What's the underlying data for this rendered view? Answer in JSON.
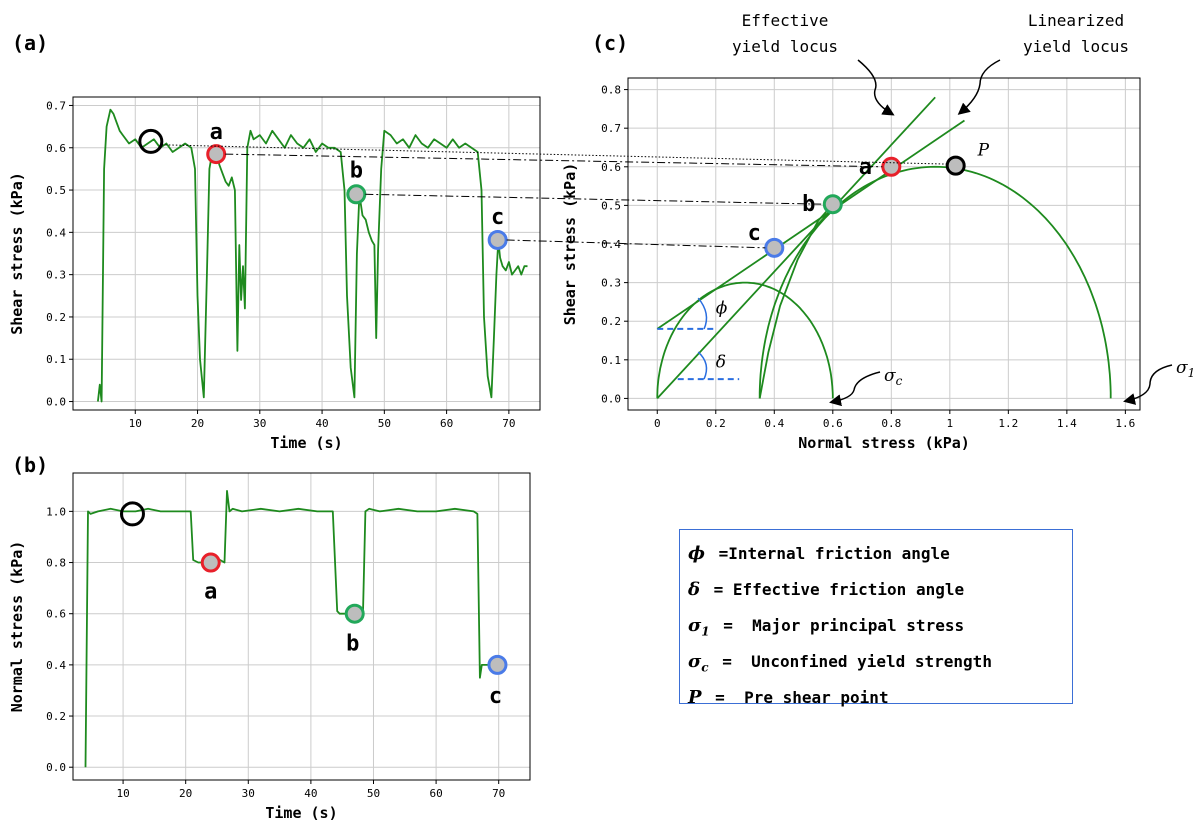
{
  "chart_data": [
    {
      "id": "a",
      "type": "line",
      "panel_label": "(a)",
      "xlabel": "Time (s)",
      "ylabel": "Shear stress (kPa)",
      "xlim": [
        0,
        75
      ],
      "ylim": [
        -0.02,
        0.72
      ],
      "xticks": [
        10,
        20,
        30,
        40,
        50,
        60,
        70
      ],
      "yticks": [
        0.0,
        0.1,
        0.2,
        0.3,
        0.4,
        0.5,
        0.6,
        0.7
      ],
      "grid": true,
      "series": [
        {
          "color": "#1e8a1e",
          "x": [
            4,
            4.3,
            4.6,
            5.0,
            5.4,
            6.0,
            6.5,
            7.0,
            7.5,
            8.0,
            9.0,
            10.0,
            11.0,
            12.0,
            13.0,
            14.0,
            15.0,
            16.0,
            17.0,
            18.0,
            19.0,
            19.6,
            20.0,
            20.4,
            21.0,
            21.5,
            21.9,
            22.5,
            23.0,
            23.5,
            24.0,
            24.5,
            25.0,
            25.5,
            26.0,
            26.4,
            26.7,
            27.0,
            27.3,
            27.6,
            28.0,
            28.5,
            29.0,
            30.0,
            31.0,
            32.0,
            33.0,
            34.0,
            35.0,
            36.0,
            37.0,
            38.0,
            39.0,
            40.0,
            41.0,
            42.0,
            43.0,
            43.6,
            44.0,
            44.6,
            45.2,
            45.6,
            46.0,
            46.5,
            47.0,
            47.5,
            48.0,
            48.4,
            48.7,
            49.0,
            49.5,
            50.0,
            51.0,
            52.0,
            53.0,
            54.0,
            55.0,
            56.0,
            57.0,
            58.0,
            59.0,
            60.0,
            61.0,
            62.0,
            63.0,
            64.0,
            65.0,
            65.6,
            66.0,
            66.6,
            67.2,
            67.6,
            68.0,
            68.3,
            68.6,
            69.0,
            69.5,
            70.0,
            70.5,
            71.0,
            71.5,
            72.0,
            72.5,
            73.0
          ],
          "y": [
            0.0,
            0.04,
            0.0,
            0.55,
            0.65,
            0.69,
            0.68,
            0.66,
            0.64,
            0.63,
            0.61,
            0.62,
            0.6,
            0.61,
            0.62,
            0.6,
            0.61,
            0.59,
            0.6,
            0.61,
            0.6,
            0.55,
            0.25,
            0.1,
            0.01,
            0.3,
            0.55,
            0.6,
            0.59,
            0.56,
            0.54,
            0.52,
            0.51,
            0.53,
            0.5,
            0.12,
            0.37,
            0.24,
            0.32,
            0.22,
            0.6,
            0.64,
            0.62,
            0.63,
            0.61,
            0.64,
            0.62,
            0.6,
            0.63,
            0.61,
            0.6,
            0.62,
            0.59,
            0.61,
            0.6,
            0.6,
            0.59,
            0.5,
            0.25,
            0.08,
            0.01,
            0.35,
            0.49,
            0.44,
            0.43,
            0.4,
            0.38,
            0.37,
            0.15,
            0.36,
            0.55,
            0.64,
            0.63,
            0.61,
            0.62,
            0.6,
            0.63,
            0.61,
            0.6,
            0.62,
            0.61,
            0.6,
            0.62,
            0.6,
            0.61,
            0.6,
            0.59,
            0.5,
            0.2,
            0.06,
            0.01,
            0.15,
            0.3,
            0.38,
            0.34,
            0.32,
            0.31,
            0.33,
            0.3,
            0.31,
            0.32,
            0.3,
            0.32,
            0.32
          ]
        }
      ],
      "markers": [
        {
          "x": 12.5,
          "y": 0.615,
          "color": "#000000",
          "fill": "none",
          "label": ""
        },
        {
          "x": 23.0,
          "y": 0.585,
          "color": "#e8202a",
          "fill": "#bdbdbd",
          "label": "a"
        },
        {
          "x": 45.5,
          "y": 0.49,
          "color": "#22a85a",
          "fill": "#bdbdbd",
          "label": "b"
        },
        {
          "x": 68.2,
          "y": 0.382,
          "color": "#4a7be8",
          "fill": "#bdbdbd",
          "label": "c"
        }
      ]
    },
    {
      "id": "b",
      "type": "line",
      "panel_label": "(b)",
      "xlabel": "Time (s)",
      "ylabel": "Normal stress (kPa)",
      "xlim": [
        2,
        75
      ],
      "ylim": [
        -0.05,
        1.15
      ],
      "xticks": [
        10,
        20,
        30,
        40,
        50,
        60,
        70
      ],
      "yticks": [
        0.0,
        0.2,
        0.4,
        0.6,
        0.8,
        1.0
      ],
      "grid": true,
      "series": [
        {
          "color": "#1e8a1e",
          "x": [
            4,
            4.4,
            4.8,
            6,
            8,
            10,
            12,
            14,
            16,
            18,
            20,
            20.8,
            21.2,
            22,
            24,
            25.5,
            26.2,
            26.6,
            27.0,
            27.5,
            29,
            32,
            35,
            38,
            41,
            43.5,
            44.2,
            44.6,
            46,
            47.5,
            48.3,
            48.7,
            49.3,
            51,
            54,
            57,
            60,
            63,
            66,
            66.6,
            67.0,
            67.3,
            68,
            70,
            71
          ],
          "y": [
            0.0,
            1.0,
            0.99,
            1.0,
            1.01,
            1.0,
            1.0,
            1.01,
            1.0,
            1.0,
            1.0,
            1.0,
            0.81,
            0.8,
            0.8,
            0.81,
            0.8,
            1.08,
            1.0,
            1.01,
            1.0,
            1.01,
            1.0,
            1.01,
            1.0,
            1.0,
            0.61,
            0.6,
            0.6,
            0.6,
            0.59,
            1.0,
            1.01,
            1.0,
            1.01,
            1.0,
            1.0,
            1.01,
            1.0,
            0.99,
            0.35,
            0.4,
            0.4,
            0.4,
            0.4
          ]
        }
      ],
      "markers": [
        {
          "x": 11.5,
          "y": 0.99,
          "color": "#000000",
          "fill": "none",
          "label": ""
        },
        {
          "x": 24.0,
          "y": 0.8,
          "color": "#e8202a",
          "fill": "#bdbdbd",
          "label": "a"
        },
        {
          "x": 47.0,
          "y": 0.6,
          "color": "#22a85a",
          "fill": "#bdbdbd",
          "label": "b"
        },
        {
          "x": 69.8,
          "y": 0.4,
          "color": "#4a7be8",
          "fill": "#bdbdbd",
          "label": "c"
        }
      ]
    },
    {
      "id": "c",
      "type": "line",
      "panel_label": "(c)",
      "xlabel": "Normal stress (kPa)",
      "ylabel": "Shear stress (kPa)",
      "xlim": [
        -0.1,
        1.65
      ],
      "ylim": [
        -0.03,
        0.83
      ],
      "xticks": [
        0.0,
        0.2,
        0.4,
        0.6,
        0.8,
        1.0,
        1.2,
        1.4,
        1.6
      ],
      "yticks": [
        0.0,
        0.1,
        0.2,
        0.3,
        0.4,
        0.5,
        0.6,
        0.7,
        0.8
      ],
      "grid": true,
      "circles": [
        {
          "center": 0.3,
          "radius": 0.3
        },
        {
          "center": 0.95,
          "radius": 0.6
        }
      ],
      "effective_locus": {
        "x": [
          0.0,
          0.95
        ],
        "y": [
          0.0,
          0.78
        ]
      },
      "linear_locus": {
        "x": [
          0.0,
          1.05
        ],
        "y": [
          0.18,
          0.72
        ]
      },
      "curved_locus": {
        "x": [
          0.35,
          0.38,
          0.42,
          0.48,
          0.55,
          0.6
        ],
        "y": [
          0.0,
          0.12,
          0.24,
          0.36,
          0.46,
          0.503
        ]
      },
      "markers": [
        {
          "x": 0.8,
          "y": 0.6,
          "color": "#e8202a",
          "fill": "#bdbdbd",
          "label": "a"
        },
        {
          "x": 1.02,
          "y": 0.603,
          "color": "#000000",
          "fill": "#bdbdbd",
          "label": ""
        },
        {
          "x": 0.6,
          "y": 0.503,
          "color": "#22a85a",
          "fill": "#bdbdbd",
          "label": "b"
        },
        {
          "x": 0.4,
          "y": 0.39,
          "color": "#4a7be8",
          "fill": "#bdbdbd",
          "label": "c"
        }
      ],
      "annotations": {
        "effective_locus": [
          "Effective",
          "yield locus"
        ],
        "linear_locus": [
          "Linearized",
          "yield locus"
        ],
        "pre_shear_symbol": "P",
        "phi_symbol": "ϕ",
        "delta_symbol": "δ",
        "sigma_c_symbol": "σ",
        "sigma_c_sub": "c",
        "sigma_1_symbol": "σ",
        "sigma_1_sub": "1"
      }
    }
  ],
  "legend": [
    {
      "symbol": "ϕ",
      "sub": "",
      "text": " =Internal friction angle"
    },
    {
      "symbol": "δ",
      "sub": "",
      "text": " = Effective friction angle"
    },
    {
      "symbol": "σ",
      "sub": "1",
      "text": " =  Major principal stress"
    },
    {
      "symbol": "σ",
      "sub": "c",
      "text": " =  Unconfined yield strength"
    },
    {
      "symbol": "P",
      "sub": "",
      "text": " =  Pre shear point"
    }
  ],
  "colors": {
    "curve": "#1e8a1e",
    "grid": "#cccccc",
    "dash_blue": "#2a6ee0",
    "legend_border": "#3b6fd6"
  }
}
